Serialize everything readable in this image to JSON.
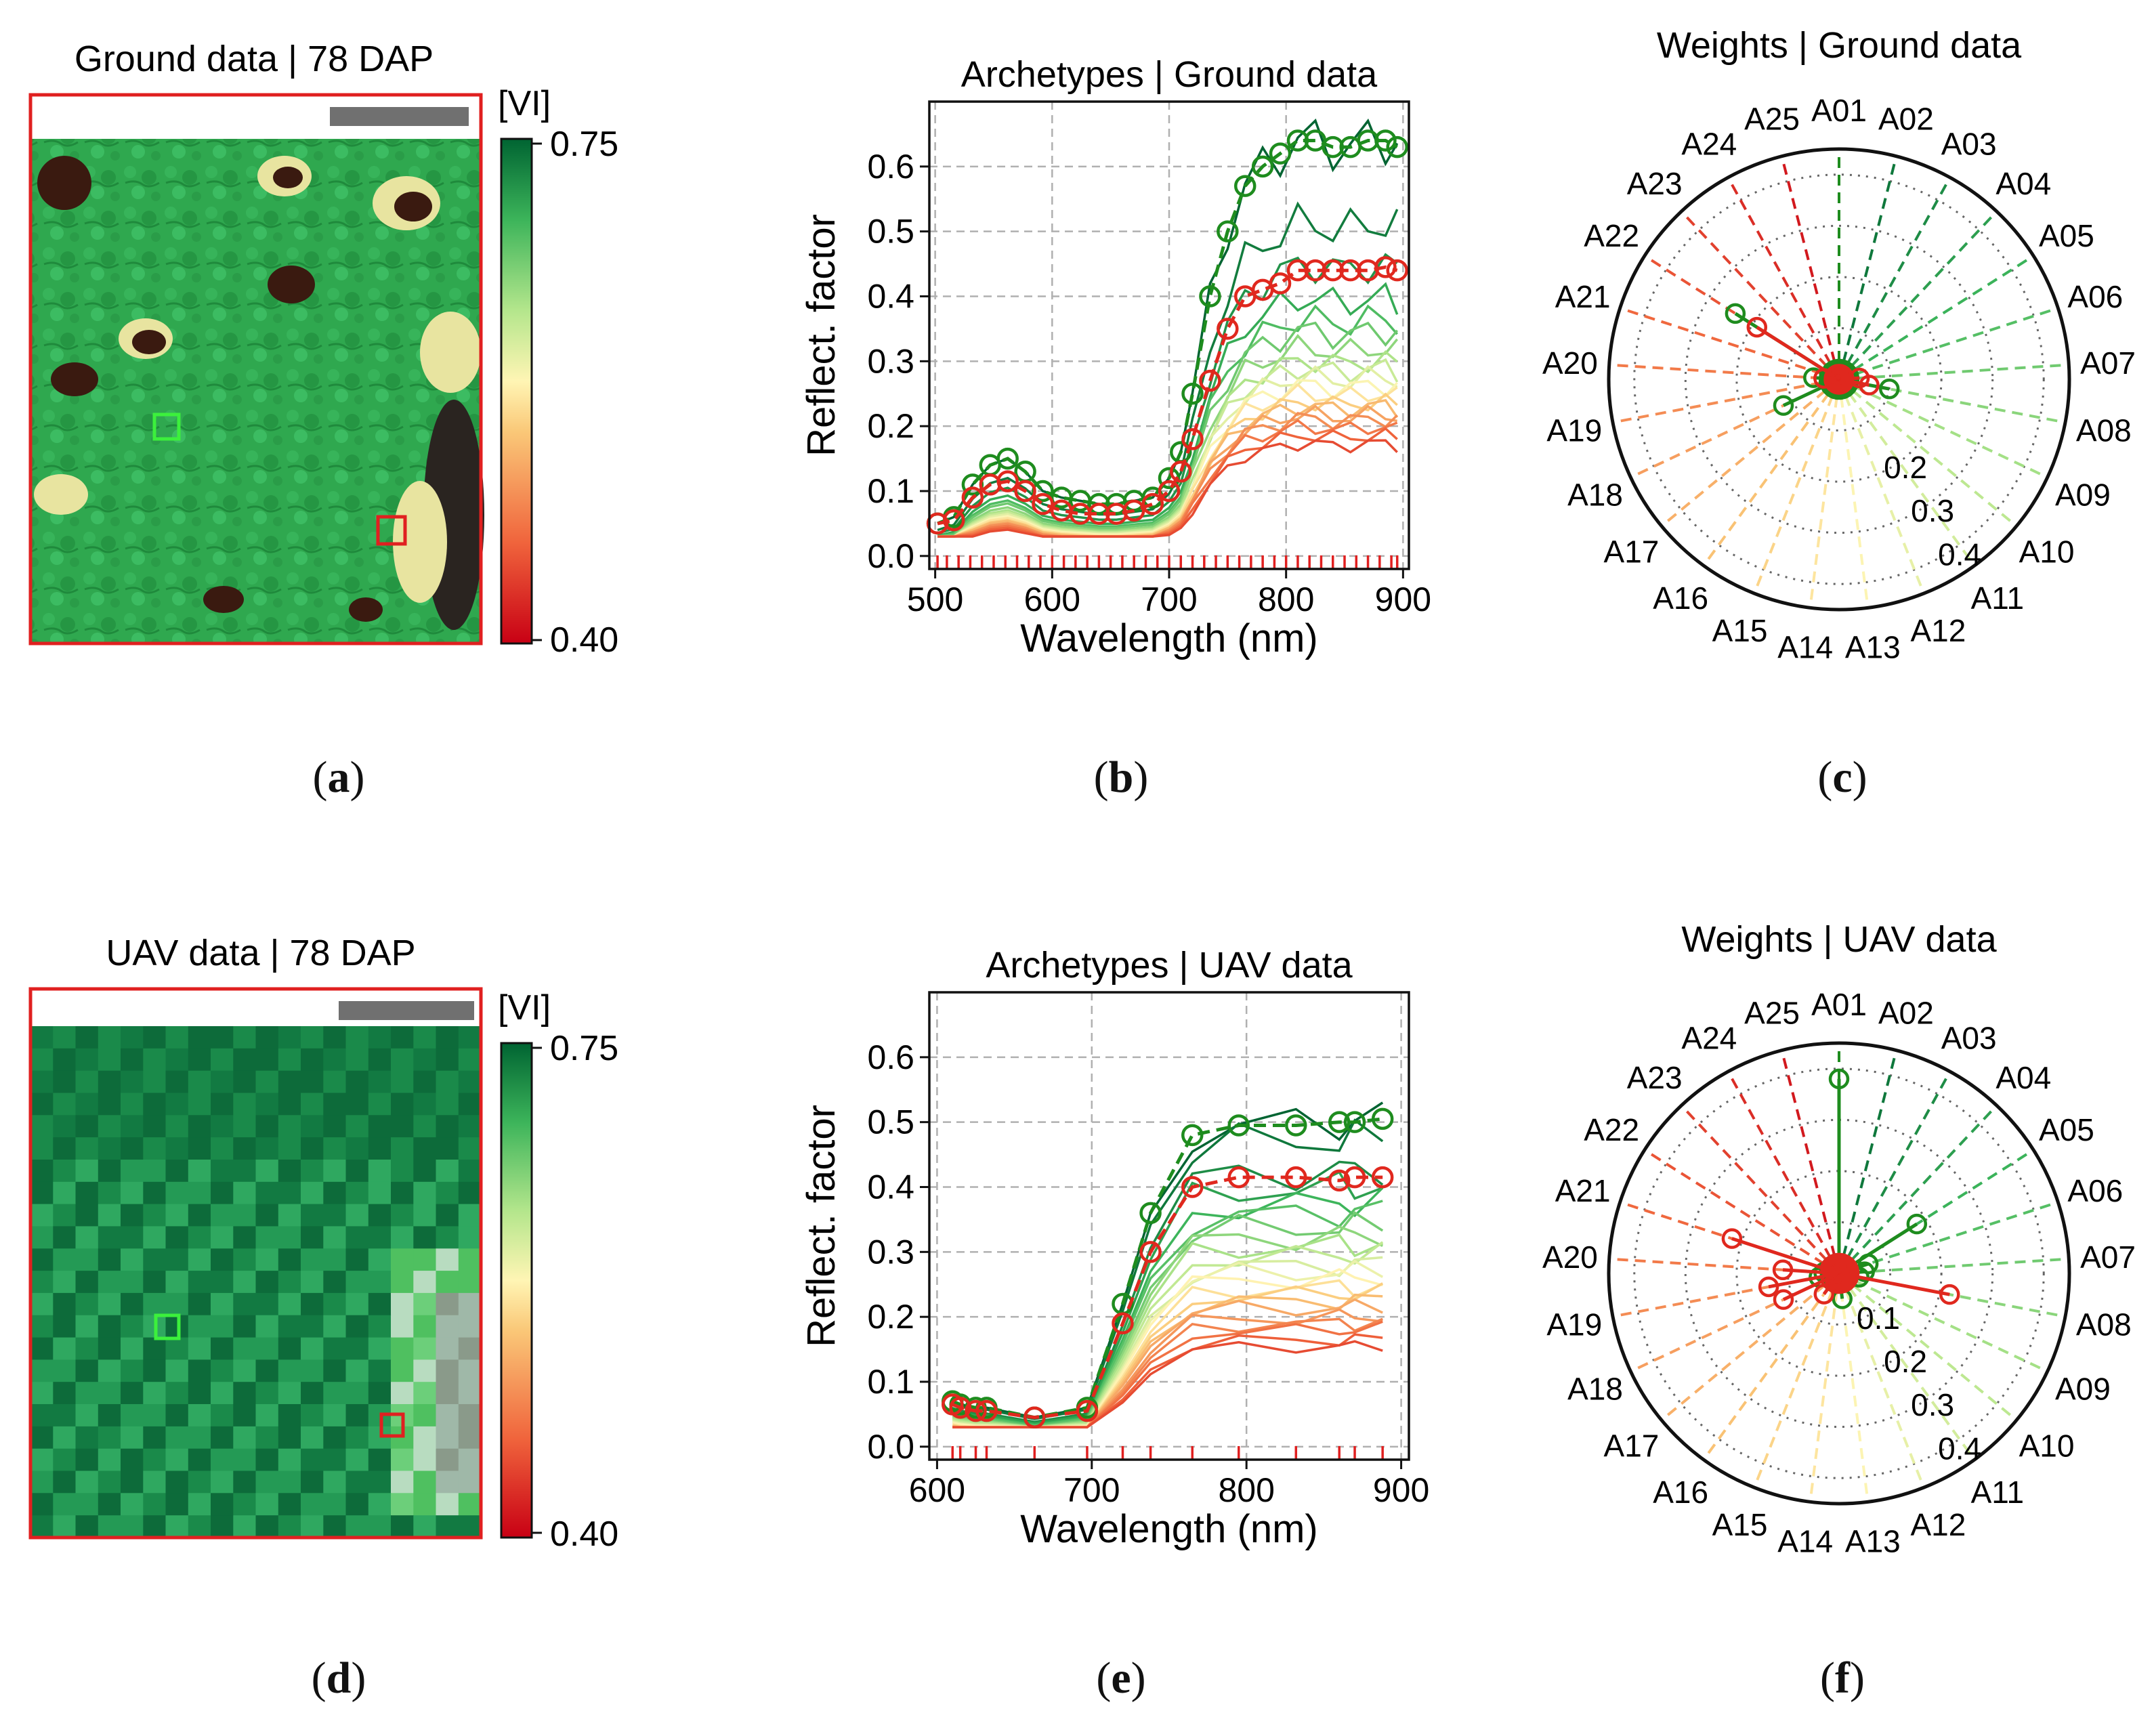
{
  "panels": {
    "a": {
      "letter": "a",
      "title": "Ground data | 78 DAP"
    },
    "b": {
      "letter": "b"
    },
    "c": {
      "letter": "c"
    },
    "d": {
      "letter": "d",
      "title": "UAV data | 78 DAP"
    },
    "e": {
      "letter": "e"
    },
    "f": {
      "letter": "f"
    }
  },
  "colorbar": {
    "unit": "[VI]",
    "max_label": "0.75",
    "min_label": "0.40",
    "min": 0.4,
    "max": 0.75
  },
  "colors": {
    "green_marker": "#1e8c1e",
    "red_marker": "#e0281e",
    "frame": "#e02020",
    "bright_box": "#3cf03c"
  },
  "chart_data": [
    {
      "id": "b",
      "type": "line",
      "title": "Archetypes | Ground data",
      "xlabel": "Wavelength (nm)",
      "ylabel": "Reflect. factor",
      "xlim": [
        495,
        905
      ],
      "ylim": [
        -0.02,
        0.7
      ],
      "xticks": [
        500,
        600,
        700,
        800,
        900
      ],
      "yticks": [
        "0.0",
        "0.1",
        "0.2",
        "0.3",
        "0.4",
        "0.5",
        "0.6"
      ],
      "grid": true,
      "band_wavelengths": [
        502,
        510,
        520,
        530,
        540,
        550,
        560,
        570,
        580,
        590,
        600,
        610,
        620,
        630,
        640,
        650,
        660,
        670,
        680,
        690,
        700,
        710,
        720,
        730,
        740,
        750,
        760,
        770,
        780,
        790,
        800,
        810,
        820,
        830,
        840,
        850,
        860,
        870,
        880,
        890,
        895
      ],
      "x": [
        502,
        516,
        532,
        547,
        562,
        577,
        592,
        608,
        624,
        640,
        655,
        670,
        686,
        700,
        710,
        720,
        735,
        750,
        765,
        780,
        795,
        810,
        825,
        840,
        855,
        870,
        885,
        895
      ],
      "base_green": [
        0.05,
        0.06,
        0.11,
        0.14,
        0.15,
        0.13,
        0.1,
        0.09,
        0.085,
        0.08,
        0.08,
        0.085,
        0.09,
        0.12,
        0.16,
        0.25,
        0.4,
        0.5,
        0.57,
        0.6,
        0.62,
        0.64,
        0.64,
        0.63,
        0.63,
        0.64,
        0.64,
        0.63
      ],
      "base_red": [
        0.05,
        0.055,
        0.09,
        0.11,
        0.115,
        0.1,
        0.08,
        0.07,
        0.065,
        0.065,
        0.065,
        0.07,
        0.08,
        0.1,
        0.13,
        0.18,
        0.27,
        0.35,
        0.4,
        0.41,
        0.42,
        0.44,
        0.44,
        0.44,
        0.44,
        0.44,
        0.445,
        0.44
      ],
      "extra_series_scales": [
        1.0,
        0.8,
        0.7,
        0.62,
        0.57,
        0.54,
        0.5,
        0.47,
        0.45,
        0.43,
        0.41,
        0.39,
        0.37,
        0.36,
        0.34,
        0.33,
        0.31,
        0.29,
        0.27
      ],
      "marked_series": [
        {
          "name": "green archetype",
          "color": "#1e8c1e",
          "x": [
            502,
            516,
            532,
            547,
            562,
            577,
            592,
            608,
            624,
            640,
            655,
            670,
            686,
            700,
            710,
            720,
            735,
            750,
            765,
            780,
            795,
            810,
            825,
            840,
            855,
            870,
            885,
            895
          ],
          "values": [
            0.05,
            0.06,
            0.11,
            0.14,
            0.15,
            0.13,
            0.1,
            0.09,
            0.085,
            0.08,
            0.08,
            0.085,
            0.09,
            0.12,
            0.16,
            0.25,
            0.4,
            0.5,
            0.57,
            0.6,
            0.62,
            0.64,
            0.64,
            0.63,
            0.63,
            0.64,
            0.64,
            0.63
          ]
        },
        {
          "name": "red archetype",
          "color": "#e0281e",
          "x": [
            502,
            516,
            532,
            547,
            562,
            577,
            592,
            608,
            624,
            640,
            655,
            670,
            686,
            700,
            710,
            720,
            735,
            750,
            765,
            780,
            795,
            810,
            825,
            840,
            855,
            870,
            885,
            895
          ],
          "values": [
            0.05,
            0.055,
            0.09,
            0.11,
            0.115,
            0.1,
            0.08,
            0.07,
            0.065,
            0.065,
            0.065,
            0.07,
            0.08,
            0.1,
            0.13,
            0.18,
            0.27,
            0.35,
            0.4,
            0.41,
            0.42,
            0.44,
            0.44,
            0.44,
            0.44,
            0.44,
            0.445,
            0.44
          ]
        }
      ]
    },
    {
      "id": "e",
      "type": "line",
      "title": "Archetypes | UAV data",
      "xlabel": "Wavelength (nm)",
      "ylabel": "Reflect. factor",
      "xlim": [
        595,
        905
      ],
      "ylim": [
        -0.02,
        0.7
      ],
      "xticks": [
        600,
        700,
        800,
        900
      ],
      "yticks": [
        "0.0",
        "0.1",
        "0.2",
        "0.3",
        "0.4",
        "0.5",
        "0.6"
      ],
      "grid": true,
      "band_wavelengths": [
        610,
        615,
        625,
        632,
        663,
        697,
        720,
        738,
        765,
        795,
        832,
        860,
        870,
        888
      ],
      "x": [
        610,
        615,
        625,
        632,
        663,
        697,
        720,
        738,
        765,
        795,
        832,
        860,
        870,
        888
      ],
      "base_green": [
        0.07,
        0.065,
        0.06,
        0.06,
        0.045,
        0.06,
        0.22,
        0.36,
        0.48,
        0.495,
        0.495,
        0.5,
        0.5,
        0.505
      ],
      "base_red": [
        0.065,
        0.06,
        0.055,
        0.055,
        0.045,
        0.055,
        0.19,
        0.3,
        0.4,
        0.415,
        0.415,
        0.41,
        0.415,
        0.415
      ],
      "extra_series_scales": [
        1.0,
        0.95,
        0.85,
        0.8,
        0.75,
        0.72,
        0.68,
        0.65,
        0.62,
        0.59,
        0.56,
        0.54,
        0.52,
        0.49,
        0.47,
        0.45,
        0.43,
        0.4,
        0.38,
        0.36,
        0.33,
        0.31
      ],
      "marked_series": [
        {
          "name": "green archetype",
          "color": "#1e8c1e",
          "x": [
            610,
            615,
            625,
            632,
            663,
            697,
            720,
            738,
            765,
            795,
            832,
            860,
            870,
            888
          ],
          "values": [
            0.07,
            0.065,
            0.06,
            0.06,
            0.045,
            0.06,
            0.22,
            0.36,
            0.48,
            0.495,
            0.495,
            0.5,
            0.5,
            0.505
          ]
        },
        {
          "name": "red archetype",
          "color": "#e0281e",
          "x": [
            610,
            615,
            625,
            632,
            663,
            697,
            720,
            738,
            765,
            795,
            832,
            860,
            870,
            888
          ],
          "values": [
            0.065,
            0.06,
            0.055,
            0.055,
            0.045,
            0.055,
            0.19,
            0.3,
            0.4,
            0.415,
            0.415,
            0.41,
            0.415,
            0.415
          ]
        }
      ]
    },
    {
      "id": "c",
      "type": "polar",
      "title": "Weights | Ground data",
      "categories": [
        "A01",
        "A02",
        "A03",
        "A04",
        "A05",
        "A06",
        "A07",
        "A08",
        "A09",
        "A10",
        "A11",
        "A12",
        "A13",
        "A14",
        "A15",
        "A16",
        "A17",
        "A18",
        "A19",
        "A20",
        "A21",
        "A22",
        "A23",
        "A24",
        "A25"
      ],
      "rlim": [
        0,
        0.45
      ],
      "rings": [
        0.1,
        0.2,
        0.3,
        0.4
      ],
      "ring_labels": [
        "0.2",
        "0.3",
        "0.4"
      ],
      "series": [
        {
          "name": "green",
          "color": "#1e8c1e",
          "values": [
            0.02,
            0.02,
            0.02,
            0.02,
            0.02,
            0.02,
            0.02,
            0.1,
            0.02,
            0.02,
            0.02,
            0.02,
            0.02,
            0.02,
            0.02,
            0.02,
            0.02,
            0.12,
            0.02,
            0.05,
            0.02,
            0.24,
            0.02,
            0.02,
            0.02
          ]
        },
        {
          "name": "red",
          "color": "#e0281e",
          "values": [
            0.01,
            0.01,
            0.01,
            0.01,
            0.01,
            0.01,
            0.04,
            0.06,
            0.01,
            0.01,
            0.01,
            0.01,
            0.01,
            0.01,
            0.01,
            0.01,
            0.01,
            0.01,
            0.01,
            0.03,
            0.01,
            0.19,
            0.01,
            0.01,
            0.01
          ]
        }
      ]
    },
    {
      "id": "f",
      "type": "polar",
      "title": "Weights | UAV data",
      "categories": [
        "A01",
        "A02",
        "A03",
        "A04",
        "A05",
        "A06",
        "A07",
        "A08",
        "A09",
        "A10",
        "A11",
        "A12",
        "A13",
        "A14",
        "A15",
        "A16",
        "A17",
        "A18",
        "A19",
        "A20",
        "A21",
        "A22",
        "A23",
        "A24",
        "A25"
      ],
      "rlim": [
        0,
        0.45
      ],
      "rings": [
        0.1,
        0.2,
        0.3,
        0.4
      ],
      "ring_labels": [
        "0.1",
        "0.2",
        "0.3",
        "0.4"
      ],
      "series": [
        {
          "name": "green",
          "color": "#1e8c1e",
          "values": [
            0.38,
            0.02,
            0.02,
            0.02,
            0.18,
            0.06,
            0.05,
            0.04,
            0.02,
            0.02,
            0.02,
            0.02,
            0.05,
            0.02,
            0.02,
            0.02,
            0.02,
            0.02,
            0.04,
            0.03,
            0.02,
            0.02,
            0.02,
            0.02,
            0.02
          ]
        },
        {
          "name": "red",
          "color": "#e0281e",
          "values": [
            0.02,
            0.02,
            0.02,
            0.02,
            0.02,
            0.02,
            0.02,
            0.22,
            0.02,
            0.02,
            0.02,
            0.02,
            0.02,
            0.02,
            0.02,
            0.05,
            0.02,
            0.12,
            0.14,
            0.11,
            0.22,
            0.02,
            0.02,
            0.02,
            0.02
          ]
        }
      ]
    }
  ]
}
